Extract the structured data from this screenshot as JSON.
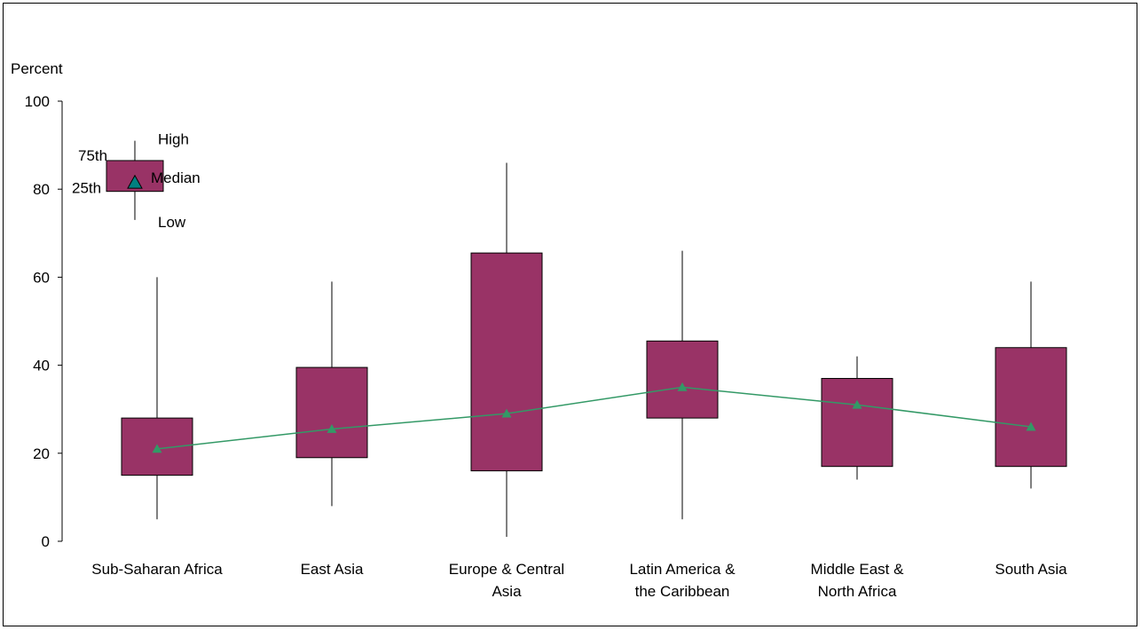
{
  "chart_data": {
    "type": "box",
    "ylabel": "Percent",
    "ylim": [
      0,
      100
    ],
    "yticks": [
      0,
      20,
      40,
      60,
      80,
      100
    ],
    "categories": [
      [
        "Sub-Saharan Africa"
      ],
      [
        "East Asia"
      ],
      [
        "Europe & Central",
        "Asia"
      ],
      [
        "Latin America &",
        "the Caribbean"
      ],
      [
        "Middle East &",
        "North Africa"
      ],
      [
        "South Asia"
      ]
    ],
    "boxes": [
      {
        "low": 5,
        "q1": 15,
        "median": 21,
        "q3": 28,
        "high": 60
      },
      {
        "low": 8,
        "q1": 19,
        "median": 25.5,
        "q3": 39.5,
        "high": 59
      },
      {
        "low": 1,
        "q1": 16,
        "median": 29,
        "q3": 65.5,
        "high": 86
      },
      {
        "low": 5,
        "q1": 28,
        "median": 35,
        "q3": 45.5,
        "high": 66
      },
      {
        "low": 14,
        "q1": 17,
        "median": 31,
        "q3": 37,
        "high": 42
      },
      {
        "low": 12,
        "q1": 17,
        "median": 26,
        "q3": 44,
        "high": 59
      }
    ],
    "key": {
      "labels": {
        "high": "High",
        "q3": "75th",
        "median": "Median",
        "q1": "25th",
        "low": "Low"
      },
      "values": {
        "low": 73,
        "q1": 79.5,
        "median": 81.5,
        "q3": 86.5,
        "high": 91
      }
    },
    "colors": {
      "box": "#993366",
      "median_line": "#339966",
      "key_marker": "#008080"
    }
  }
}
